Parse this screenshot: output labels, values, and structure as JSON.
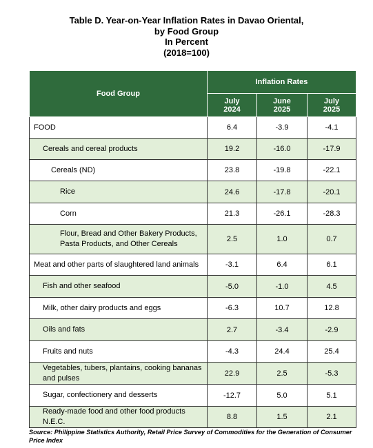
{
  "header": {
    "title_lines": [
      "Table D. Year-on-Year Inflation Rates in Davao Oriental,",
      "by Food Group",
      "In Percent",
      "(2018=100)"
    ]
  },
  "table": {
    "group_header": "Food Group",
    "span_header": "Inflation Rates",
    "columns": [
      {
        "month": "July",
        "year": "2024"
      },
      {
        "month": "June",
        "year": "2025"
      },
      {
        "month": "July",
        "year": "2025"
      }
    ],
    "rows": [
      [
        "FOOD",
        "6.4",
        "-3.9",
        "-4.1"
      ],
      [
        "Cereals and cereal products",
        "19.2",
        "-16.0",
        "-17.9"
      ],
      [
        "Cereals (ND)",
        "23.8",
        "-19.8",
        "-22.1"
      ],
      [
        "Rice",
        "24.6",
        "-17.8",
        "-20.1"
      ],
      [
        "Corn",
        "21.3",
        "-26.1",
        "-28.3"
      ],
      [
        "Flour, Bread and Other Bakery Products, Pasta Products, and Other Cereals",
        "2.5",
        "1.0",
        "0.7"
      ],
      [
        "Meat and other parts of slaughtered land animals",
        "-3.1",
        "6.4",
        "6.1"
      ],
      [
        "Fish and other seafood",
        "-5.0",
        "-1.0",
        "4.5"
      ],
      [
        "Milk, other dairy products and eggs",
        "-6.3",
        "10.7",
        "12.8"
      ],
      [
        "Oils and fats",
        "2.7",
        "-3.4",
        "-2.9"
      ],
      [
        "Fruits and nuts",
        "-4.3",
        "24.4",
        "25.4"
      ],
      [
        "Vegetables, tubers, plantains, cooking bananas and pulses",
        "22.9",
        "2.5",
        "-5.3"
      ],
      [
        "Sugar, confectionery and desserts",
        "-12.7",
        "5.0",
        "5.1"
      ],
      [
        "Ready-made food and other food products N.E.C.",
        "8.8",
        "1.5",
        "2.1"
      ]
    ]
  },
  "footer": {
    "source": "Source: Philippine Statistics Authority, Retail Price Survey of Commodities for the Generation of Consumer Price Index"
  }
}
